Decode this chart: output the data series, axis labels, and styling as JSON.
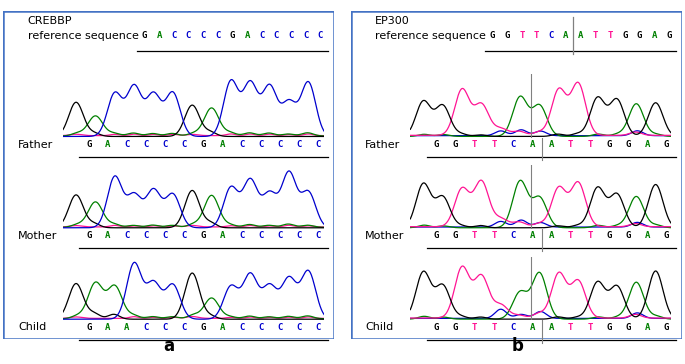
{
  "panel_a_gene": "CREBBP",
  "panel_a_ref": "GACCCCGACCCCC",
  "panel_a_father": "GACCCCGACCCCC",
  "panel_a_mother": "GACCCCGACCCCC",
  "panel_a_child": "GAACCCGACCCCC",
  "panel_b_gene": "EP300",
  "panel_b_ref": "GGTTCAATTGGAG",
  "panel_b_father": "GGTTCAATTGGAG",
  "panel_b_mother": "GGTTCAATTGGAG",
  "panel_b_child": "GGTTCAATTGGAG",
  "panel_b_vline_after": 5,
  "background": "#ffffff",
  "border_color": "#4472c4",
  "color_G": "#000000",
  "color_A": "#008000",
  "color_T": "#ff1493",
  "color_C": "#0000cd",
  "label_a": "a",
  "label_b": "b",
  "gene_fontsize": 8,
  "seq_fontsize": 6.5,
  "sample_fontsize": 8,
  "panel_label_fontsize": 12
}
